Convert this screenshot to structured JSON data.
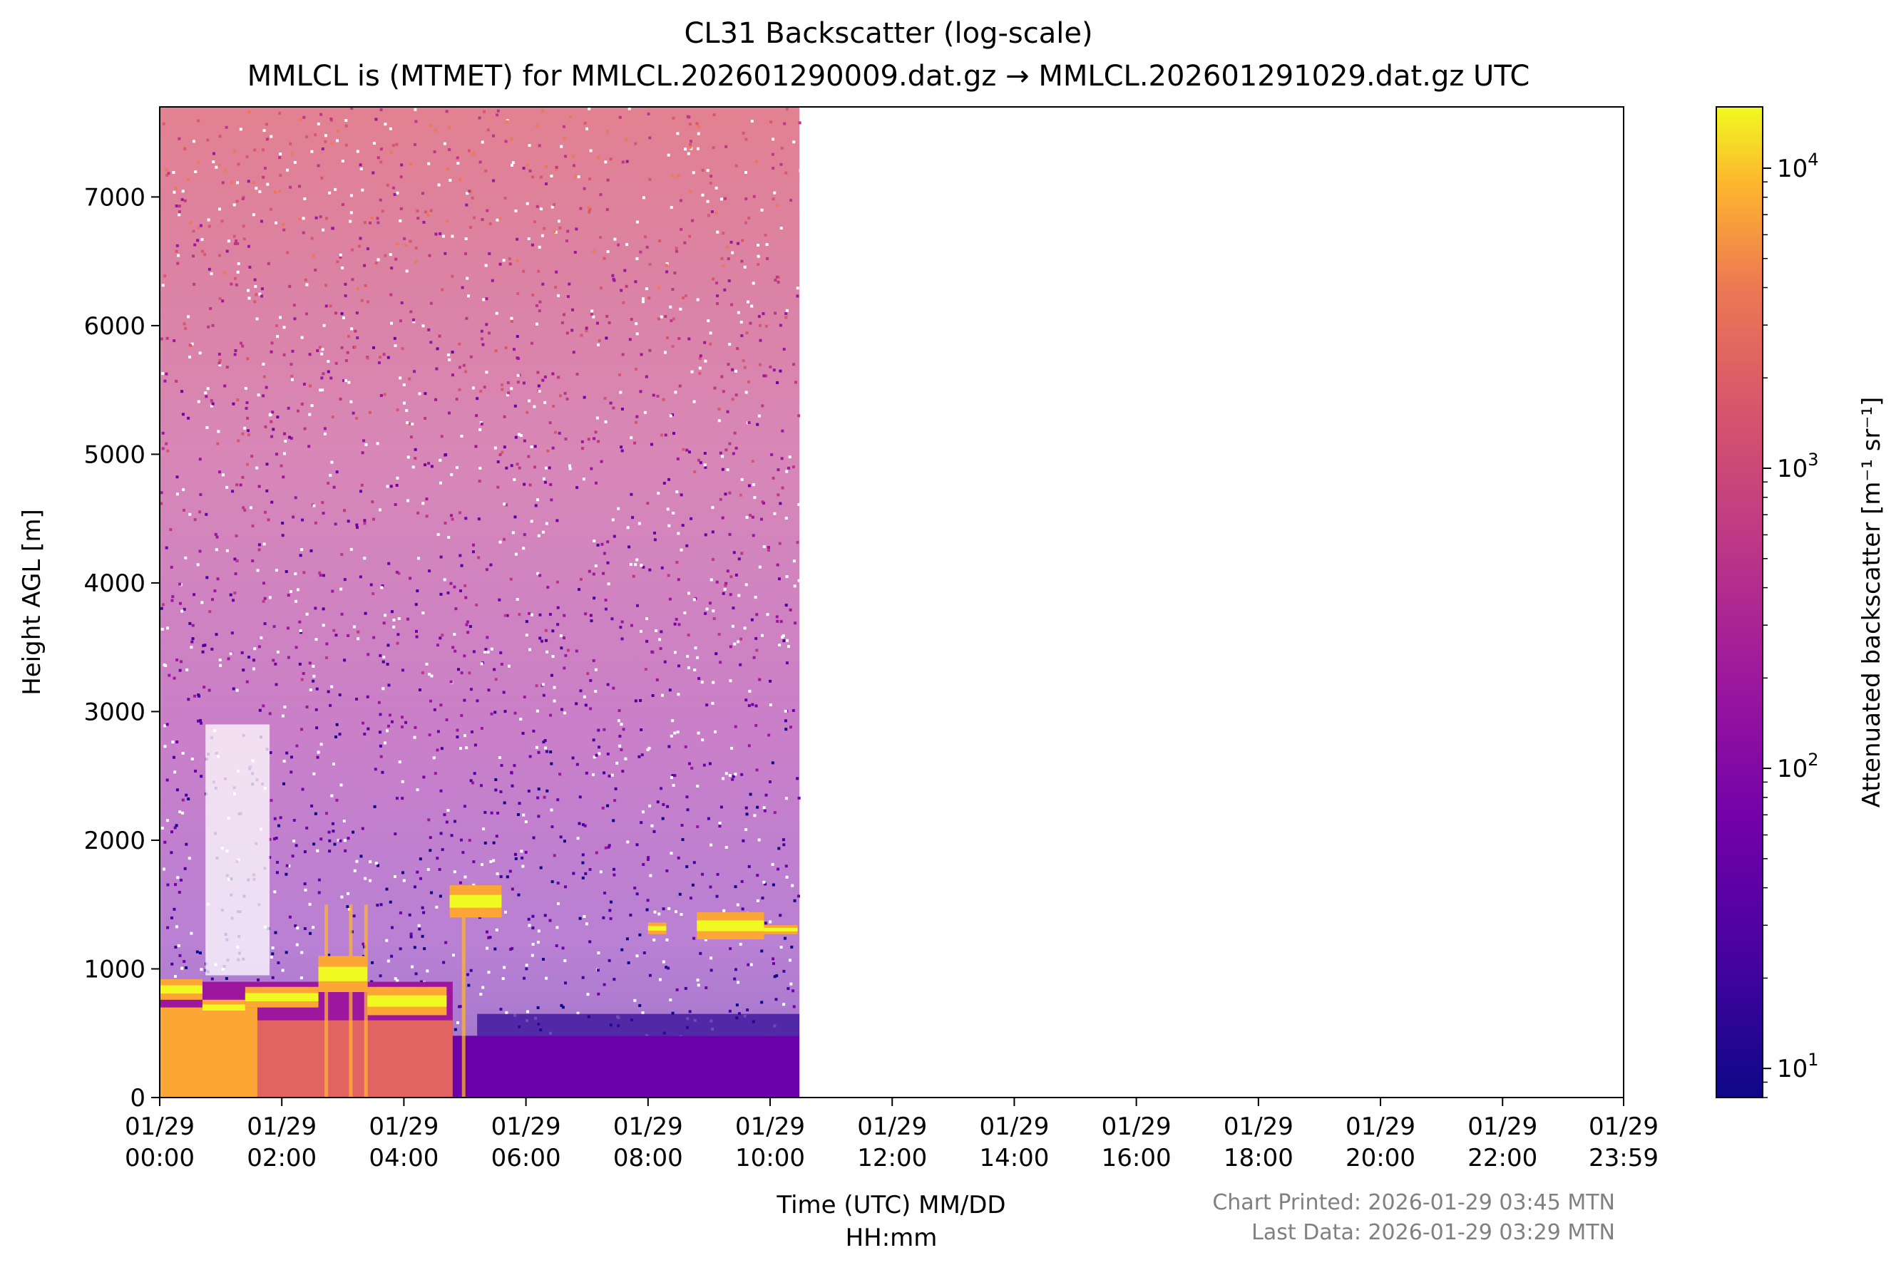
{
  "chart_data": {
    "type": "heatmap",
    "title": "CL31 Backscatter (log-scale)",
    "subtitle": "MMLCL is (MTMET) for MMLCL.202601290009.dat.gz → MMLCL.202601291029.dat.gz UTC",
    "xlabel_line1": "Time (UTC) MM/DD",
    "xlabel_line2": "HH:mm",
    "ylabel": "Height AGL [m]",
    "colorbar_label": "Attenuated backscatter [m⁻¹ sr⁻¹]",
    "colormap": "plasma",
    "x_range_hours": [
      0,
      23.983
    ],
    "data_end_hour": 10.48,
    "ylim": [
      0,
      7700
    ],
    "yticks": [
      {
        "value": 0,
        "label": "0"
      },
      {
        "value": 1000,
        "label": "1000"
      },
      {
        "value": 2000,
        "label": "2000"
      },
      {
        "value": 3000,
        "label": "3000"
      },
      {
        "value": 4000,
        "label": "4000"
      },
      {
        "value": 5000,
        "label": "5000"
      },
      {
        "value": 6000,
        "label": "6000"
      },
      {
        "value": 7000,
        "label": "7000"
      }
    ],
    "xticks": [
      {
        "hour": 0,
        "date": "01/29",
        "time": "00:00"
      },
      {
        "hour": 2,
        "date": "01/29",
        "time": "02:00"
      },
      {
        "hour": 4,
        "date": "01/29",
        "time": "04:00"
      },
      {
        "hour": 6,
        "date": "01/29",
        "time": "06:00"
      },
      {
        "hour": 8,
        "date": "01/29",
        "time": "08:00"
      },
      {
        "hour": 10,
        "date": "01/29",
        "time": "10:00"
      },
      {
        "hour": 12,
        "date": "01/29",
        "time": "12:00"
      },
      {
        "hour": 14,
        "date": "01/29",
        "time": "14:00"
      },
      {
        "hour": 16,
        "date": "01/29",
        "time": "16:00"
      },
      {
        "hour": 18,
        "date": "01/29",
        "time": "18:00"
      },
      {
        "hour": 20,
        "date": "01/29",
        "time": "20:00"
      },
      {
        "hour": 22,
        "date": "01/29",
        "time": "22:00"
      },
      {
        "hour": 23.983,
        "date": "01/29",
        "time": "23:59"
      }
    ],
    "colorbar_range": [
      8,
      16000
    ],
    "colorbar_ticks": [
      {
        "value": 10,
        "base": "10",
        "exp": "1"
      },
      {
        "value": 100,
        "base": "10",
        "exp": "2"
      },
      {
        "value": 1000,
        "base": "10",
        "exp": "3"
      },
      {
        "value": 10000,
        "base": "10",
        "exp": "4"
      }
    ],
    "cloud_layers": [
      {
        "start_hour": 0.0,
        "end_hour": 0.7,
        "base_m": 760,
        "top_m": 920
      },
      {
        "start_hour": 0.7,
        "end_hour": 1.4,
        "base_m": 640,
        "top_m": 760
      },
      {
        "start_hour": 1.4,
        "end_hour": 2.6,
        "base_m": 700,
        "top_m": 860
      },
      {
        "start_hour": 2.6,
        "end_hour": 3.4,
        "base_m": 820,
        "top_m": 1100
      },
      {
        "start_hour": 3.4,
        "end_hour": 4.7,
        "base_m": 640,
        "top_m": 860
      },
      {
        "start_hour": 4.75,
        "end_hour": 5.6,
        "base_m": 1400,
        "top_m": 1650
      },
      {
        "start_hour": 8.0,
        "end_hour": 8.3,
        "base_m": 1270,
        "top_m": 1360
      },
      {
        "start_hour": 8.8,
        "end_hour": 9.9,
        "base_m": 1230,
        "top_m": 1440
      },
      {
        "start_hour": 9.9,
        "end_hour": 10.45,
        "base_m": 1270,
        "top_m": 1340
      }
    ],
    "colors": {
      "axis": "#000000",
      "background": "#ffffff",
      "footer": "#808080"
    }
  },
  "footer": {
    "chart_printed": "Chart Printed: 2026-01-29 03:45 MTN",
    "last_data": "Last Data: 2026-01-29 03:29 MTN"
  }
}
